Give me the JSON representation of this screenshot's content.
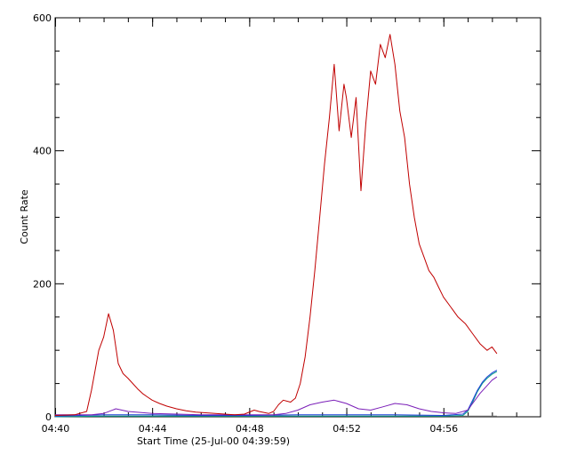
{
  "chart_data": {
    "type": "line",
    "title": "",
    "xlabel": "Start Time (25-Jul-00 04:39:59)",
    "ylabel": "Count Rate",
    "xlim": [
      0,
      20
    ],
    "ylim": [
      0,
      600
    ],
    "x_ticks": [
      {
        "value": 0.0167,
        "label": "04:40"
      },
      {
        "value": 4.0167,
        "label": "04:44"
      },
      {
        "value": 8.0167,
        "label": "04:48"
      },
      {
        "value": 12.0167,
        "label": "04:52"
      },
      {
        "value": 16.0167,
        "label": "04:56"
      }
    ],
    "y_ticks": [
      {
        "value": 0,
        "label": "0"
      },
      {
        "value": 200,
        "label": "200"
      },
      {
        "value": 400,
        "label": "400"
      },
      {
        "value": 600,
        "label": "600"
      }
    ],
    "grid": false,
    "series": [
      {
        "color": "#c00000",
        "x": [
          0.0,
          0.8,
          1.3,
          1.5,
          1.8,
          2.0,
          2.2,
          2.4,
          2.6,
          2.8,
          3.0,
          3.2,
          3.4,
          3.6,
          3.8,
          4.0,
          4.3,
          4.6,
          5.0,
          5.4,
          5.8,
          6.2,
          6.6,
          7.0,
          7.4,
          7.8,
          8.2,
          8.4,
          8.8,
          9.0,
          9.2,
          9.4,
          9.7,
          9.9,
          10.1,
          10.3,
          10.5,
          10.7,
          10.9,
          11.1,
          11.3,
          11.5,
          11.7,
          11.9,
          12.0,
          12.2,
          12.4,
          12.6,
          12.8,
          13.0,
          13.2,
          13.4,
          13.6,
          13.8,
          14.0,
          14.2,
          14.4,
          14.6,
          14.8,
          15.0,
          15.2,
          15.4,
          15.6,
          15.8,
          16.0,
          16.3,
          16.6,
          16.9,
          17.2,
          17.5,
          17.8,
          18.0,
          18.2
        ],
        "values": [
          2,
          3,
          8,
          40,
          100,
          120,
          155,
          130,
          80,
          65,
          58,
          50,
          42,
          35,
          30,
          25,
          20,
          16,
          12,
          9,
          7,
          6,
          5,
          4,
          3,
          4,
          10,
          8,
          5,
          8,
          18,
          25,
          22,
          28,
          50,
          90,
          150,
          220,
          300,
          380,
          450,
          530,
          430,
          500,
          480,
          420,
          480,
          340,
          440,
          520,
          500,
          560,
          540,
          575,
          530,
          460,
          420,
          350,
          300,
          260,
          240,
          220,
          210,
          195,
          180,
          165,
          150,
          140,
          125,
          110,
          100,
          105,
          95
        ]
      },
      {
        "color": "#7b1fb8",
        "x": [
          0.0,
          1.5,
          2.0,
          2.5,
          3.0,
          4.0,
          5.0,
          6.0,
          7.0,
          8.0,
          9.0,
          9.5,
          10.0,
          10.5,
          11.0,
          11.5,
          12.0,
          12.5,
          13.0,
          13.5,
          14.0,
          14.5,
          15.0,
          15.5,
          16.0,
          16.5,
          17.0,
          17.5,
          18.0,
          18.2
        ],
        "values": [
          3,
          3,
          5,
          12,
          8,
          5,
          4,
          3,
          3,
          3,
          3,
          5,
          10,
          18,
          22,
          25,
          20,
          12,
          10,
          15,
          20,
          18,
          12,
          8,
          6,
          5,
          10,
          35,
          55,
          60
        ]
      },
      {
        "color": "#1f3fd8",
        "x": [
          0.0,
          2.0,
          4.0,
          6.0,
          8.0,
          10.0,
          12.0,
          14.0,
          16.0,
          16.8,
          17.0,
          17.2,
          17.4,
          17.6,
          17.8,
          18.0,
          18.2
        ],
        "values": [
          1,
          3,
          3,
          2,
          2,
          3,
          3,
          3,
          2,
          4,
          10,
          25,
          40,
          52,
          60,
          66,
          70
        ]
      },
      {
        "color": "#009a8a",
        "x": [
          0.0,
          2.0,
          4.0,
          6.0,
          8.0,
          10.0,
          12.0,
          14.0,
          16.0,
          16.8,
          17.0,
          17.2,
          17.4,
          17.6,
          17.8,
          18.0,
          18.2
        ],
        "values": [
          0,
          1,
          1,
          1,
          1,
          1,
          1,
          1,
          1,
          2,
          8,
          22,
          38,
          50,
          58,
          64,
          68
        ]
      },
      {
        "color": "#7a7a7a",
        "x": [
          0.0,
          18.2
        ],
        "values": [
          1,
          1
        ]
      }
    ]
  }
}
